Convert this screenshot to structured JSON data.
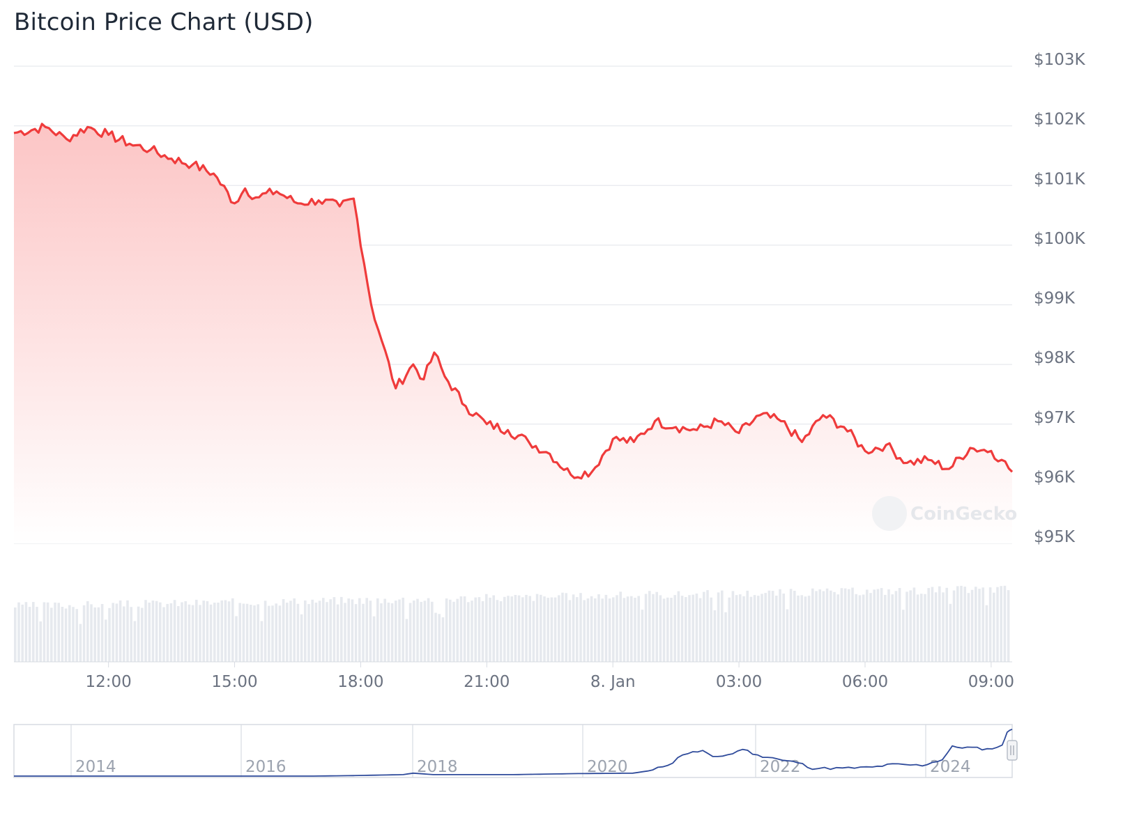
{
  "title": "Bitcoin Price Chart (USD)",
  "watermark": "CoinGecko",
  "colors": {
    "price_line": "#ef3b3b",
    "area_top": "#fcc5c5",
    "volume": "#e6e9ee",
    "grid": "#e7e9ee",
    "navigator_line": "#2f4b9b"
  },
  "chart_data": {
    "type": "area",
    "ylim": [
      95000,
      103000
    ],
    "yticks": [
      "$103K",
      "$102K",
      "$101K",
      "$100K",
      "$99K",
      "$98K",
      "$97K",
      "$96K",
      "$95K"
    ],
    "xticks": [
      "12:00",
      "15:00",
      "18:00",
      "21:00",
      "8. Jan",
      "03:00",
      "06:00",
      "09:00"
    ],
    "grid": true,
    "series": [
      {
        "time": [
          "09:45",
          "10:30",
          "11:00",
          "11:30",
          "12:00",
          "12:30",
          "13:00",
          "13:30",
          "14:00",
          "14:30",
          "15:00",
          "15:15",
          "15:30",
          "16:00",
          "16:30",
          "17:00",
          "17:30",
          "17:50",
          "18:15",
          "18:30",
          "18:50",
          "19:15",
          "19:30",
          "19:45",
          "20:00",
          "20:30",
          "21:00",
          "21:30",
          "22:00",
          "22:30",
          "23:00",
          "23:30",
          "00:00",
          "00:30",
          "01:00",
          "01:30",
          "02:00",
          "02:30",
          "03:00",
          "03:30",
          "04:00",
          "04:30",
          "05:00",
          "05:30",
          "06:00",
          "06:30",
          "07:00",
          "07:30",
          "08:00",
          "08:30",
          "09:00",
          "09:15",
          "09:30"
        ],
        "values": [
          101880,
          101980,
          101780,
          101980,
          101850,
          101700,
          101600,
          101450,
          101350,
          101200,
          100700,
          100950,
          100800,
          100900,
          100700,
          100750,
          100650,
          100780,
          99000,
          98400,
          97600,
          98000,
          97750,
          98200,
          97800,
          97300,
          97000,
          96900,
          96700,
          96500,
          96150,
          96200,
          96750,
          96700,
          97050,
          96950,
          96900,
          97050,
          96850,
          97150,
          97050,
          96700,
          97150,
          96950,
          96550,
          96650,
          96350,
          96400,
          96250,
          96600,
          96550,
          96400,
          96200
        ]
      }
    ],
    "volume_note": "relative bars",
    "navigator": {
      "years": [
        "2014",
        "2016",
        "2018",
        "2020",
        "2022",
        "2024"
      ]
    }
  }
}
